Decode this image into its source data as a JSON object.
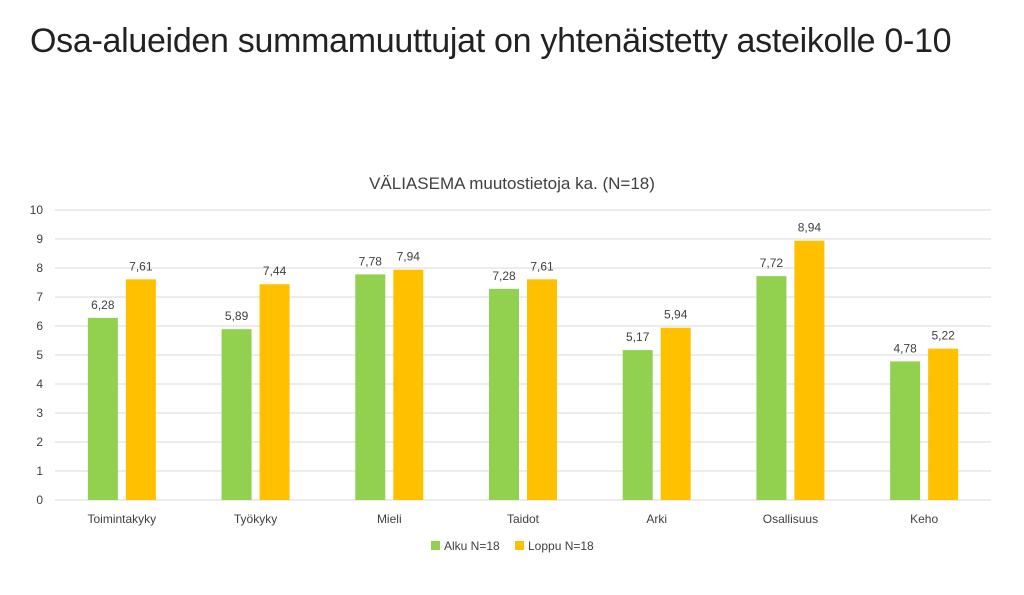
{
  "slide": {
    "title": "Osa-alueiden summamuuttujat on yhtenäistetty asteikolle 0-10"
  },
  "chart_data": {
    "type": "bar",
    "title": "VÄLIASEMA muutostietoja ka. (N=18)",
    "xlabel": "",
    "ylabel": "",
    "ylim": [
      0,
      10
    ],
    "yticks": [
      0,
      1,
      2,
      3,
      4,
      5,
      6,
      7,
      8,
      9,
      10
    ],
    "grid": true,
    "legend_position": "bottom",
    "categories": [
      "Toimintakyky",
      "Työkyky",
      "Mieli",
      "Taidot",
      "Arki",
      "Osallisuus",
      "Keho"
    ],
    "series": [
      {
        "name": "Alku N=18",
        "color": "#92D050",
        "values": [
          6.28,
          5.89,
          7.78,
          7.28,
          5.17,
          7.72,
          4.78
        ],
        "labels": [
          "6,28",
          "5,89",
          "7,78",
          "7,28",
          "5,17",
          "7,72",
          "4,78"
        ]
      },
      {
        "name": "Loppu N=18",
        "color": "#FFC000",
        "values": [
          7.61,
          7.44,
          7.94,
          7.61,
          5.94,
          8.94,
          5.22
        ],
        "labels": [
          "7,61",
          "7,44",
          "7,94",
          "7,61",
          "5,94",
          "8,94",
          "5,22"
        ]
      }
    ]
  }
}
